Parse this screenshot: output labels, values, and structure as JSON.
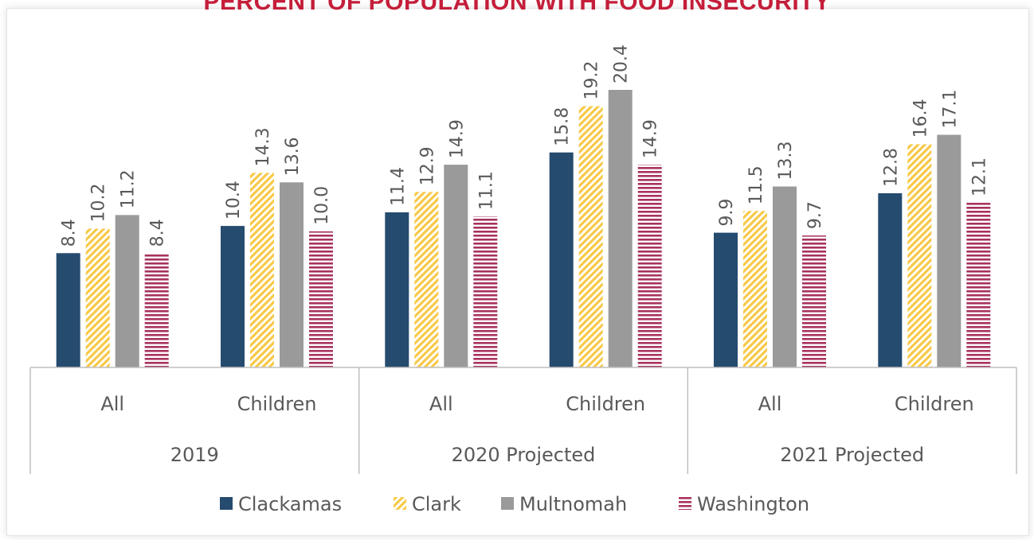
{
  "chart_data": {
    "type": "bar",
    "title": "PERCENT OF POPULATION WITH FOOD INSECURITY",
    "groups": [
      {
        "label": "2019",
        "categories": [
          "All",
          "Children"
        ]
      },
      {
        "label": "2020 Projected",
        "categories": [
          "All",
          "Children"
        ]
      },
      {
        "label": "2021 Projected",
        "categories": [
          "All",
          "Children"
        ]
      }
    ],
    "categories": [
      "All",
      "Children",
      "All",
      "Children",
      "All",
      "Children"
    ],
    "series": [
      {
        "name": "Clackamas",
        "color": "#254b6e",
        "pattern": "solid",
        "values": [
          8.4,
          10.4,
          11.4,
          15.8,
          9.9,
          12.8
        ],
        "labels": [
          "8.4",
          "10.4",
          "11.4",
          "15.8",
          "9.9",
          "12.8"
        ]
      },
      {
        "name": "Clark",
        "color": "#f7c948",
        "pattern": "diagonal-hatch",
        "values": [
          10.2,
          14.3,
          12.9,
          19.2,
          11.5,
          16.4
        ],
        "labels": [
          "10.2",
          "14.3",
          "12.9",
          "19.2",
          "11.5",
          "16.4"
        ]
      },
      {
        "name": "Multnomah",
        "color": "#9a9a9a",
        "pattern": "solid",
        "values": [
          11.2,
          13.6,
          14.9,
          20.4,
          13.3,
          17.1
        ],
        "labels": [
          "11.2",
          "13.6",
          "14.9",
          "20.4",
          "13.3",
          "17.1"
        ]
      },
      {
        "name": "Washington",
        "color": "#a8325e",
        "pattern": "horizontal-lines",
        "values": [
          8.4,
          10.0,
          11.1,
          14.9,
          9.7,
          12.1
        ],
        "labels": [
          "8.4",
          "10.0",
          "11.1",
          "14.9",
          "9.7",
          "12.1"
        ]
      }
    ],
    "ylim": [
      0,
      20.4
    ],
    "grid": false,
    "legend_position": "bottom"
  }
}
